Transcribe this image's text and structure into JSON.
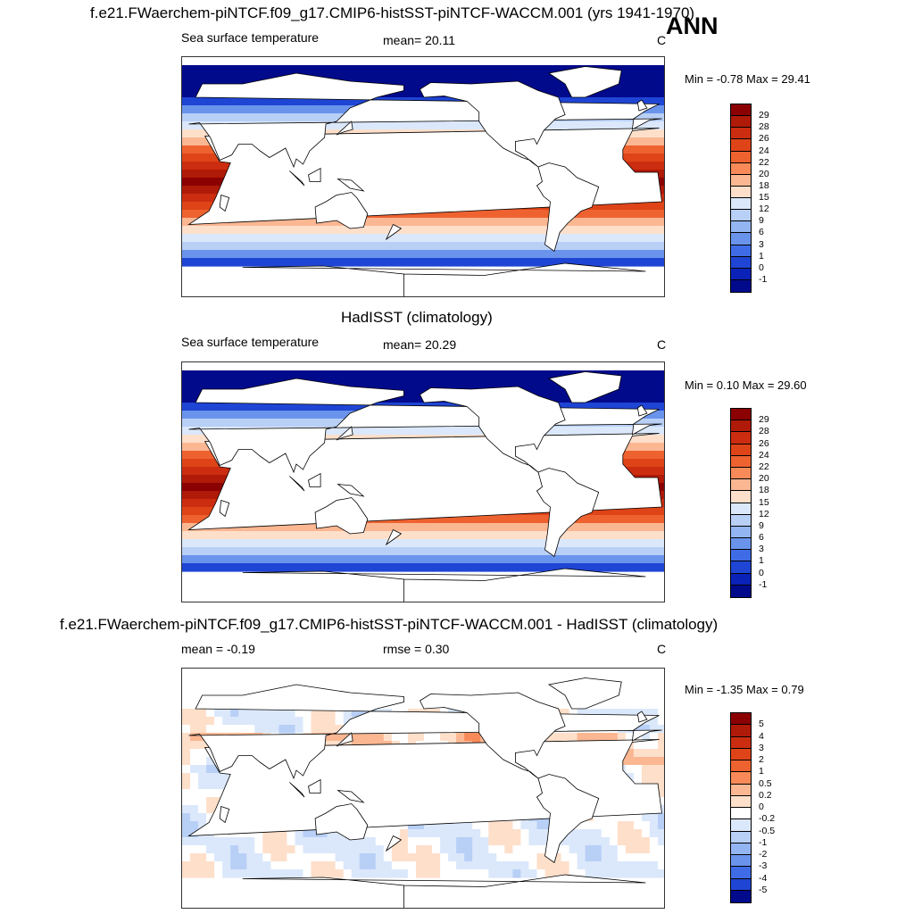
{
  "header": {
    "case_title": "f.e21.FWaerchem-piNTCF.f09_g17.CMIP6-histSST-piNTCF-WACCM.001 (yrs 1941-1970)",
    "season_label": "ANN"
  },
  "panels": [
    {
      "id": "model",
      "title": "",
      "variable": "Sea surface temperature",
      "stat_text": "mean=  20.11",
      "units": "C",
      "minmax": "Min =  -0.78 Max =  29.41",
      "palette": "sst"
    },
    {
      "id": "obs",
      "title": "HadISST (climatology)",
      "variable": "Sea surface temperature",
      "stat_text": "mean=  20.29",
      "units": "C",
      "minmax": "Min =   0.10 Max =  29.60",
      "palette": "sst"
    },
    {
      "id": "diff",
      "title": "f.e21.FWaerchem-piNTCF.f09_g17.CMIP6-histSST-piNTCF-WACCM.001 - HadISST (climatology)",
      "variable": "",
      "stat_text": "mean =  -0.19",
      "stat_text2": "rmse =   0.30",
      "units": "C",
      "minmax": "Min =  -1.35 Max =   0.79",
      "palette": "diff"
    }
  ],
  "colorbars": {
    "sst": {
      "labels": [
        "29",
        "28",
        "26",
        "24",
        "22",
        "20",
        "18",
        "15",
        "12",
        "9",
        "6",
        "3",
        "1",
        "0",
        "-1"
      ],
      "colors": [
        "#8b0000",
        "#b01a08",
        "#cc2d10",
        "#de4418",
        "#ee6230",
        "#f78a58",
        "#fbb792",
        "#fedfca",
        "#dbe8fb",
        "#b8cff6",
        "#93b5f2",
        "#6a94ec",
        "#3f6ce6",
        "#1f45d4",
        "#0a22b8",
        "#020a8c"
      ]
    },
    "diff": {
      "labels": [
        "5",
        "4",
        "3",
        "2",
        "1",
        "0.5",
        "0.2",
        "0",
        "-0.2",
        "-0.5",
        "-1",
        "-2",
        "-3",
        "-4",
        "-5"
      ],
      "colors": [
        "#8b0000",
        "#b01a08",
        "#cc2d10",
        "#de4418",
        "#ee6230",
        "#f78a58",
        "#fbb792",
        "#fedfca",
        "#ffffff",
        "#dbe8fb",
        "#b8cff6",
        "#93b5f2",
        "#6a94ec",
        "#3f6ce6",
        "#1f45d4",
        "#020a8c"
      ]
    }
  }
}
